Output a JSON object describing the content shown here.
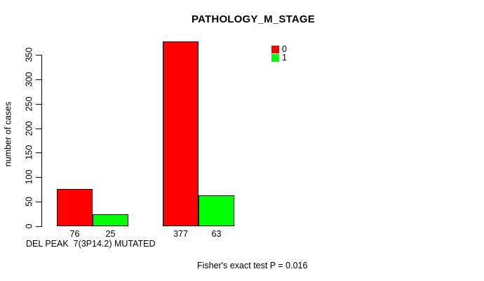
{
  "chart_data": {
    "type": "bar",
    "title": "PATHOLOGY_M_STAGE",
    "ylabel": "number of cases",
    "xlabel": "DEL PEAK  7(3P14.2) MUTATED",
    "annotation": "Fisher's exact test P = 0.016",
    "ylim": [
      0,
      350
    ],
    "yticks": [
      0,
      50,
      100,
      150,
      200,
      250,
      300,
      350
    ],
    "grid": false,
    "legend_position": "top-right",
    "legend": [
      {
        "label": "0",
        "color": "#ff0000"
      },
      {
        "label": "1",
        "color": "#00ff00"
      }
    ],
    "groups": [
      {
        "bars": [
          {
            "series": "0",
            "value": 76,
            "color": "#ff0000"
          },
          {
            "series": "1",
            "value": 25,
            "color": "#00ff00"
          }
        ]
      },
      {
        "bars": [
          {
            "series": "0",
            "value": 377,
            "color": "#ff0000"
          },
          {
            "series": "1",
            "value": 63,
            "color": "#00ff00"
          }
        ]
      }
    ]
  },
  "colors": {
    "background": "#ffffff",
    "axis": "#000000",
    "bar_border": "#000000",
    "text": "#000000",
    "series_0": "#ff0000",
    "series_1": "#00ff00"
  }
}
